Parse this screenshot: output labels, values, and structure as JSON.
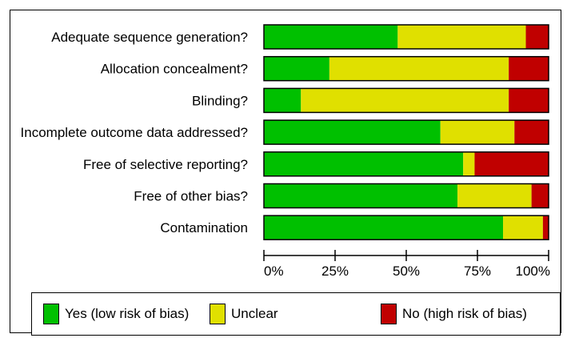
{
  "chart_data": {
    "type": "bar",
    "orientation": "horizontal",
    "stacked": true,
    "percent": true,
    "categories": [
      "Adequate sequence generation?",
      "Allocation concealment?",
      "Blinding?",
      "Incomplete outcome data addressed?",
      "Free of selective reporting?",
      "Free of other bias?",
      "Contamination"
    ],
    "series": [
      {
        "name": "Yes (low risk of bias)",
        "color": "#00c000",
        "values": [
          47,
          23,
          13,
          62,
          70,
          68,
          84
        ]
      },
      {
        "name": "Unclear",
        "color": "#e0e000",
        "values": [
          45,
          63,
          73,
          26,
          4,
          26,
          14
        ]
      },
      {
        "name": "No (high risk of bias)",
        "color": "#c00000",
        "values": [
          8,
          14,
          14,
          12,
          26,
          6,
          2
        ]
      }
    ],
    "xlim": [
      0,
      100
    ],
    "xticks": [
      0,
      25,
      50,
      75,
      100
    ],
    "xtick_labels": [
      "0%",
      "25%",
      "50%",
      "75%",
      "100%"
    ],
    "legend_position": "bottom",
    "title": "",
    "xlabel": "",
    "ylabel": ""
  }
}
